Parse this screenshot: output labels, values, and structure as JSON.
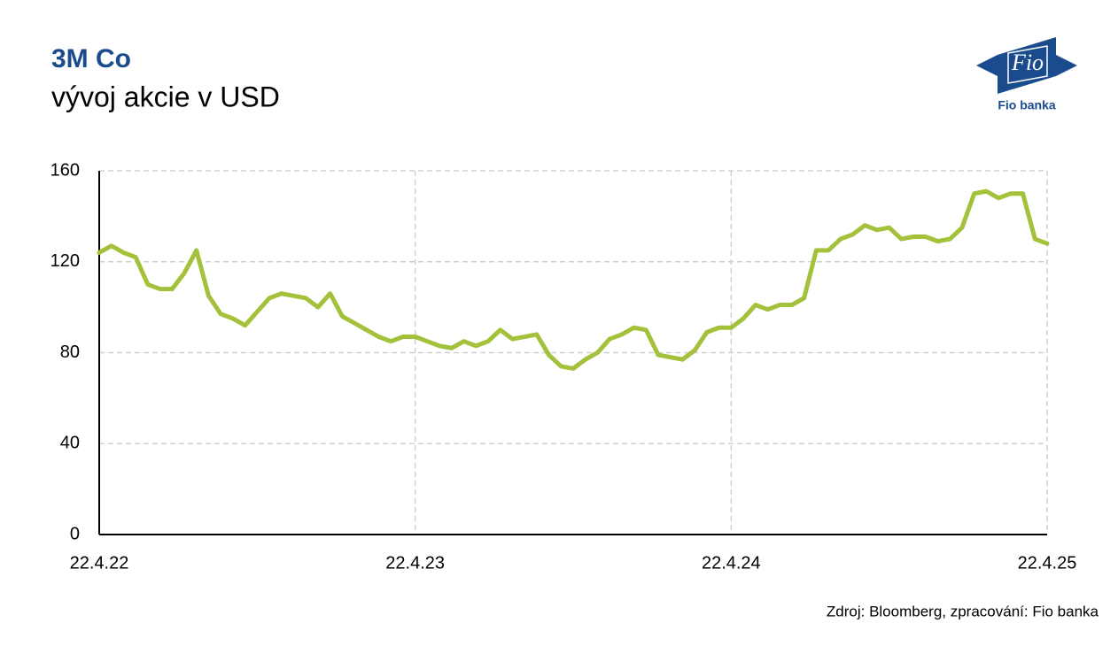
{
  "chart_data": {
    "type": "line",
    "title": "3M Co",
    "subtitle": "vývoj akcie v USD",
    "source": "Zdroj: Bloomberg, zpracování: Fio banka",
    "logo": {
      "mark": "Fio",
      "caption": "Fio banka"
    },
    "categories": [
      "22.4.22",
      null,
      null,
      null,
      null,
      null,
      null,
      null,
      null,
      null,
      null,
      null,
      null,
      null,
      null,
      null,
      null,
      null,
      null,
      null,
      null,
      null,
      null,
      null,
      null,
      null,
      "22.4.23",
      null,
      null,
      null,
      null,
      null,
      null,
      null,
      null,
      null,
      null,
      null,
      null,
      null,
      null,
      null,
      null,
      null,
      null,
      null,
      null,
      null,
      null,
      null,
      null,
      null,
      "22.4.24",
      null,
      null,
      null,
      null,
      null,
      null,
      null,
      null,
      null,
      null,
      null,
      null,
      null,
      null,
      null,
      null,
      null,
      null,
      null,
      null,
      null,
      null,
      null,
      null,
      null,
      "22.4.25"
    ],
    "series": [
      {
        "name": "3M Co",
        "color": "#a3c13a",
        "values": [
          124,
          127,
          124,
          122,
          110,
          108,
          108,
          115,
          125,
          105,
          97,
          95,
          92,
          98,
          104,
          106,
          105,
          104,
          100,
          106,
          96,
          93,
          90,
          87,
          85,
          87,
          87,
          85,
          83,
          82,
          85,
          83,
          85,
          90,
          86,
          87,
          88,
          79,
          74,
          73,
          77,
          80,
          86,
          88,
          91,
          90,
          79,
          78,
          77,
          81,
          89,
          91,
          91,
          95,
          101,
          99,
          101,
          101,
          104,
          125,
          125,
          130,
          132,
          136,
          134,
          135,
          130,
          131,
          131,
          129,
          130,
          135,
          150,
          151,
          148,
          150,
          150,
          130,
          128
        ]
      }
    ],
    "ylim": [
      0,
      160
    ],
    "yticks": [
      0,
      40,
      80,
      120,
      160
    ],
    "grid": true
  }
}
